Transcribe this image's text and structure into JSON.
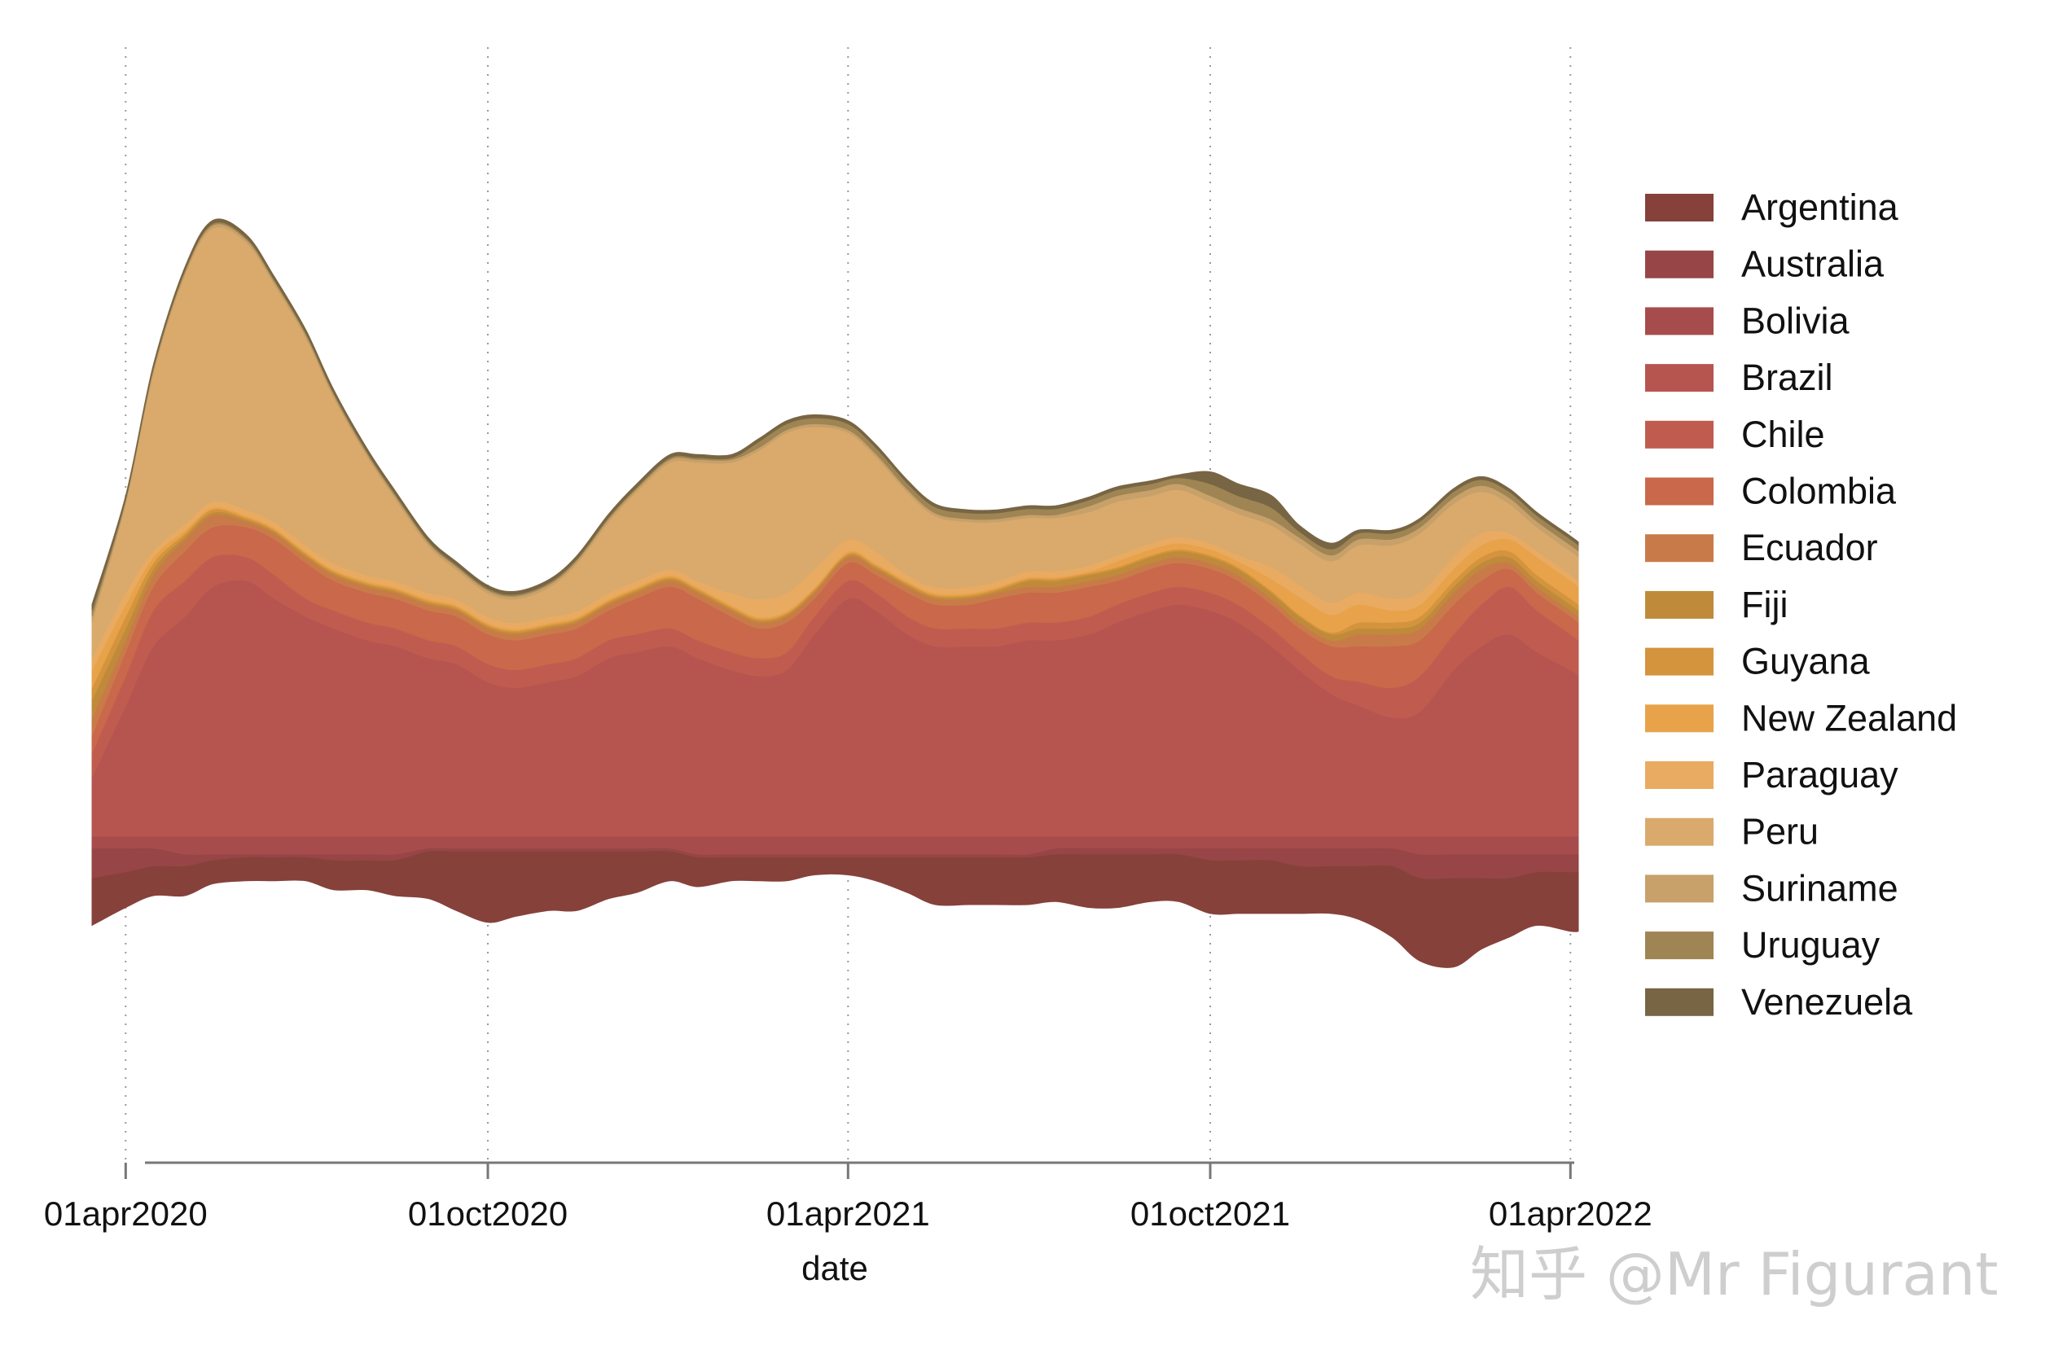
{
  "chart_data": {
    "type": "area",
    "subtype": "streamgraph",
    "title": "",
    "xlabel": "date",
    "ylabel": "",
    "x_tick_labels": [
      "01apr2020",
      "01oct2020",
      "01apr2021",
      "01oct2021",
      "01apr2022"
    ],
    "grid": "vertical dotted lines at x ticks",
    "legend_position": "right",
    "x": [
      "2020-03-15",
      "2020-04-01",
      "2020-04-15",
      "2020-05-01",
      "2020-05-15",
      "2020-06-01",
      "2020-06-15",
      "2020-07-01",
      "2020-07-15",
      "2020-08-01",
      "2020-08-15",
      "2020-09-01",
      "2020-09-15",
      "2020-10-01",
      "2020-10-15",
      "2020-11-01",
      "2020-11-15",
      "2020-12-01",
      "2020-12-15",
      "2021-01-01",
      "2021-01-15",
      "2021-02-01",
      "2021-02-15",
      "2021-03-01",
      "2021-03-15",
      "2021-04-01",
      "2021-04-15",
      "2021-05-01",
      "2021-05-15",
      "2021-06-01",
      "2021-06-15",
      "2021-07-01",
      "2021-07-15",
      "2021-08-01",
      "2021-08-15",
      "2021-09-01",
      "2021-09-15",
      "2021-10-01",
      "2021-10-15",
      "2021-11-01",
      "2021-11-15",
      "2021-12-01",
      "2021-12-15",
      "2022-01-01",
      "2022-01-15",
      "2022-02-01",
      "2022-02-15",
      "2022-03-01",
      "2022-03-15",
      "2022-04-01",
      "2022-04-05"
    ],
    "series": [
      {
        "name": "Argentina",
        "color": "#86413b",
        "values": [
          8,
          6,
          5,
          5,
          4,
          4,
          4,
          4,
          5,
          5,
          6,
          8,
          10,
          12,
          11,
          10,
          10,
          8,
          7,
          5,
          5,
          4,
          4,
          4,
          3,
          3,
          4,
          6,
          8,
          8,
          8,
          8,
          8,
          9,
          9,
          8,
          8,
          9,
          9,
          9,
          8,
          8,
          9,
          12,
          14,
          15,
          12,
          10,
          9,
          10,
          10
        ]
      },
      {
        "name": "Australia",
        "color": "#974546",
        "values": [
          5,
          4,
          3,
          2,
          1,
          0.5,
          0.5,
          0.5,
          1,
          1,
          1,
          0.5,
          0.5,
          0.5,
          0.5,
          0.5,
          0.5,
          0.5,
          0.5,
          0.5,
          0.5,
          0.5,
          0.5,
          0.5,
          0.5,
          0.5,
          0.5,
          0.5,
          0.5,
          0.5,
          0.5,
          0.5,
          1,
          1,
          1,
          1,
          1,
          2,
          2,
          2,
          3,
          3,
          3,
          3,
          4,
          4,
          4,
          4,
          3,
          3,
          3
        ]
      },
      {
        "name": "Bolivia",
        "color": "#a74c4c",
        "values": [
          2,
          2,
          2,
          3,
          3,
          3,
          3,
          3,
          3,
          3,
          3,
          2,
          2,
          2,
          2,
          2,
          2,
          2,
          2,
          2,
          3,
          3,
          3,
          3,
          3,
          3,
          3,
          3,
          3,
          3,
          3,
          3,
          2,
          2,
          2,
          2,
          2,
          2,
          2,
          2,
          2,
          2,
          2,
          2,
          3,
          3,
          3,
          3,
          3,
          3,
          3
        ]
      },
      {
        "name": "Brazil",
        "color": "#b65550",
        "values": [
          10,
          22,
          32,
          37,
          42,
          43,
          40,
          37,
          35,
          33,
          32,
          30,
          29,
          26,
          25,
          26,
          27,
          30,
          31,
          32,
          30,
          28,
          27,
          28,
          34,
          40,
          38,
          34,
          32,
          32,
          32,
          33,
          33,
          34,
          36,
          38,
          39,
          38,
          36,
          32,
          28,
          24,
          22,
          20,
          21,
          28,
          32,
          34,
          31,
          28,
          27
        ]
      },
      {
        "name": "Chile",
        "color": "#c05c4f",
        "values": [
          4,
          5,
          6,
          6,
          5,
          4,
          4,
          3,
          3,
          3,
          3,
          3,
          3,
          3,
          3,
          3,
          3,
          3,
          3,
          3,
          3,
          3,
          3,
          3,
          3,
          3,
          3,
          3,
          3,
          3,
          3,
          3,
          3,
          3,
          3,
          3,
          3,
          3,
          3,
          3,
          3,
          3,
          4,
          5,
          6,
          6,
          7,
          8,
          7,
          6,
          6
        ]
      },
      {
        "name": "Colombia",
        "color": "#c9684a",
        "values": [
          3,
          4,
          4,
          5,
          5,
          5,
          6,
          6,
          5,
          5,
          5,
          5,
          5,
          5,
          5,
          5,
          5,
          5,
          6,
          7,
          7,
          6,
          5,
          5,
          3,
          3,
          3,
          4,
          4,
          4,
          5,
          5,
          5,
          5,
          4,
          4,
          4,
          4,
          4,
          4,
          4,
          5,
          6,
          7,
          6,
          5,
          4,
          3,
          3,
          3,
          3
        ]
      },
      {
        "name": "Ecuador",
        "color": "#c87b49",
        "values": [
          3,
          2,
          2,
          2,
          2,
          1,
          1,
          1,
          1,
          1,
          1,
          1,
          1,
          1,
          1,
          1,
          1,
          1,
          1,
          1,
          1,
          1,
          1,
          1,
          1,
          1,
          1,
          1,
          1,
          1,
          1,
          1,
          1,
          1,
          1,
          1,
          1,
          1,
          1,
          1,
          1,
          1,
          2,
          2,
          2,
          2,
          2,
          1,
          1,
          1,
          1
        ]
      },
      {
        "name": "Fiji",
        "color": "#bf8b3b",
        "values": [
          3,
          2,
          1,
          0.5,
          0.5,
          0.3,
          0.3,
          0.3,
          0.3,
          0.3,
          0.3,
          0.3,
          0.3,
          0.3,
          0.3,
          0.3,
          0.3,
          0.3,
          0.3,
          0.3,
          0.3,
          0.3,
          0.3,
          0.3,
          0.3,
          0.3,
          0.3,
          0.3,
          0.3,
          0.3,
          0.3,
          1,
          1,
          1,
          1,
          1,
          1,
          1,
          1,
          1,
          1,
          1,
          1,
          1,
          1,
          1,
          1,
          1,
          1,
          1,
          1
        ]
      },
      {
        "name": "Guyana",
        "color": "#d4943d",
        "values": [
          2,
          2,
          1,
          0.5,
          0.5,
          0.3,
          0.3,
          0.3,
          0.3,
          0.3,
          0.3,
          0.3,
          0.3,
          0.3,
          0.3,
          0.3,
          0.3,
          0.3,
          0.3,
          0.3,
          0.3,
          0.3,
          0.3,
          0.3,
          0.3,
          0.3,
          0.3,
          0.3,
          0.3,
          0.3,
          0.3,
          0.3,
          0.3,
          0.3,
          0.3,
          0.3,
          0.3,
          0.3,
          0.3,
          0.3,
          0.3,
          0.3,
          1,
          1,
          1,
          1,
          1,
          1,
          1,
          1,
          1
        ]
      },
      {
        "name": "New Zealand",
        "color": "#e8a24a",
        "values": [
          3,
          2,
          1,
          0.5,
          0.3,
          0.3,
          0.3,
          0.3,
          0.3,
          0.3,
          0.3,
          0.3,
          0.3,
          0.3,
          0.3,
          0.3,
          0.3,
          0.3,
          0.3,
          0.3,
          0.3,
          0.3,
          0.3,
          0.3,
          0.3,
          0.3,
          0.3,
          0.3,
          0.3,
          0.3,
          0.3,
          0.3,
          0.3,
          0.3,
          1,
          1,
          1,
          1,
          1,
          2,
          3,
          3,
          3,
          2,
          2,
          2,
          2,
          2,
          3,
          3,
          3
        ]
      },
      {
        "name": "Paraguay",
        "color": "#e9ab62",
        "values": [
          2,
          2,
          1,
          1,
          1,
          1,
          1,
          1,
          1,
          1,
          1,
          1,
          1,
          1,
          1,
          1,
          1,
          1,
          1,
          1,
          1,
          2,
          3,
          3,
          3,
          2,
          2,
          1,
          1,
          1,
          1,
          1,
          1,
          1,
          1,
          1,
          1,
          1,
          1,
          2,
          2,
          2,
          2,
          2,
          2,
          2,
          2,
          1,
          1,
          1,
          1
        ]
      },
      {
        "name": "Peru",
        "color": "#d9aa6c",
        "values": [
          6,
          15,
          30,
          42,
          46,
          45,
          40,
          35,
          28,
          20,
          14,
          8,
          5,
          4,
          4,
          5,
          8,
          12,
          15,
          18,
          20,
          22,
          25,
          27,
          24,
          18,
          16,
          14,
          12,
          11,
          10,
          9,
          9,
          9,
          9,
          8,
          8,
          7,
          7,
          7,
          7,
          7,
          8,
          9,
          10,
          9,
          7,
          5,
          4,
          4,
          4
        ]
      },
      {
        "name": "Suriname",
        "color": "#c7a06a",
        "values": [
          1,
          0.5,
          0.5,
          0.5,
          0.5,
          0.5,
          0.5,
          0.5,
          0.5,
          0.5,
          0.5,
          0.5,
          0.5,
          0.5,
          0.5,
          0.5,
          0.5,
          0.5,
          0.5,
          0.5,
          0.5,
          0.5,
          0.5,
          0.5,
          0.5,
          0.5,
          0.5,
          0.5,
          0.5,
          0.5,
          0.5,
          0.5,
          0.5,
          1,
          1,
          1,
          1,
          1,
          1,
          1,
          1,
          1,
          1,
          1,
          1,
          1,
          1,
          1,
          1,
          1,
          1
        ]
      },
      {
        "name": "Uruguay",
        "color": "#9e8553",
        "values": [
          1,
          0.3,
          0.3,
          0.3,
          0.3,
          0.3,
          0.3,
          0.3,
          0.3,
          0.3,
          0.3,
          0.3,
          0.3,
          0.3,
          0.3,
          0.3,
          0.3,
          0.3,
          0.3,
          0.3,
          0.3,
          0.3,
          1,
          1,
          1,
          1,
          1,
          1,
          1,
          1,
          1,
          1,
          1,
          1,
          1,
          1,
          1,
          2,
          2,
          2,
          1,
          1,
          1,
          1,
          1,
          1,
          1,
          1,
          1,
          1,
          1
        ]
      },
      {
        "name": "Venezuela",
        "color": "#786544",
        "values": [
          1,
          0.5,
          0.5,
          0.5,
          0.5,
          0.5,
          0.5,
          0.5,
          0.5,
          0.5,
          0.5,
          0.5,
          0.5,
          0.5,
          0.5,
          0.5,
          0.5,
          0.5,
          0.5,
          0.5,
          0.5,
          0.5,
          0.5,
          0.5,
          0.5,
          0.5,
          0.5,
          0.5,
          0.5,
          0.5,
          0.5,
          0.5,
          0.5,
          0.5,
          0.5,
          0.5,
          0.5,
          2,
          2,
          2,
          1,
          1,
          0.5,
          0.5,
          0.5,
          0.5,
          0.5,
          0.5,
          0.5,
          0.5,
          0.5
        ]
      }
    ]
  },
  "watermark": {
    "text": "知乎 @Mr Figurant"
  }
}
